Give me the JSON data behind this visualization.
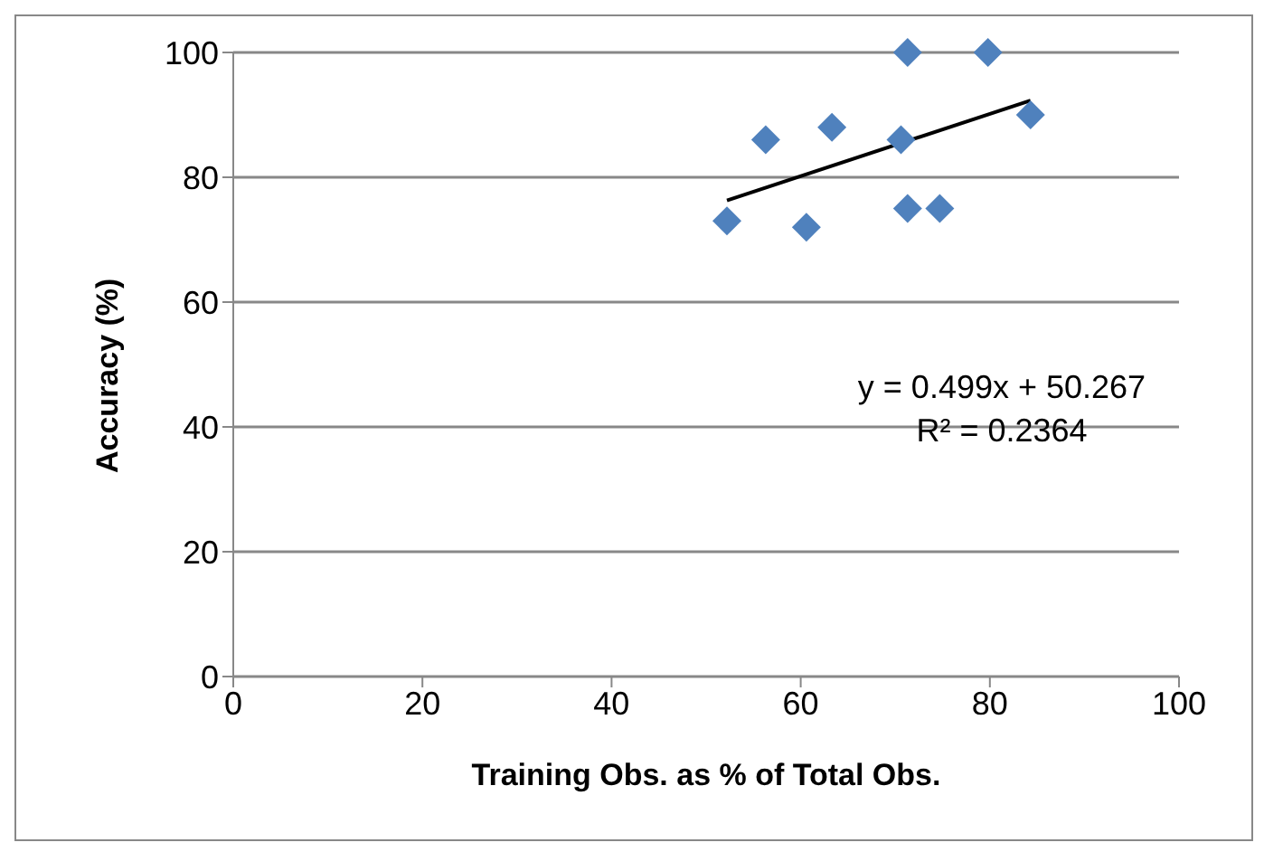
{
  "chart_data": {
    "type": "scatter",
    "xlabel": "Training Obs. as % of Total Obs.",
    "ylabel": "Accuracy (%)",
    "series": [
      {
        "color": "#4f81bd",
        "marker": "diamond",
        "x": [
          52.2,
          56.3,
          60.6,
          63.3,
          70.6,
          71.3,
          71.3,
          74.7,
          79.8,
          84.3
        ],
        "values": [
          73,
          86,
          72,
          88,
          86,
          100,
          75,
          75,
          100,
          90
        ]
      },
      {
        "type": "line",
        "color": "#000000",
        "marker": "none",
        "x": [
          52.2,
          84.3
        ],
        "values": [
          76.3,
          92.3
        ]
      }
    ],
    "xlim": [
      0,
      100
    ],
    "xticks": [
      0,
      20,
      40,
      60,
      80,
      100
    ],
    "ylim": [
      0,
      100
    ],
    "yticks": [
      0,
      20,
      40,
      60,
      80,
      100
    ],
    "grid": "y",
    "legend": false,
    "annotations": [
      "y = 0.499x + 50.267",
      "R² = 0.2364"
    ]
  }
}
